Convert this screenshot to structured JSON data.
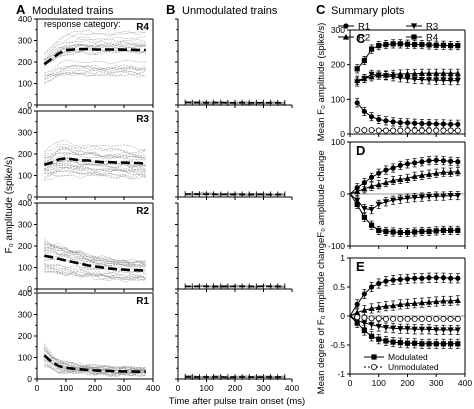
{
  "panels": {
    "A": {
      "letter": "A",
      "title": "Modulated trains"
    },
    "B": {
      "letter": "B",
      "title": "Unmodulated trains"
    },
    "C": {
      "letter": "C",
      "title": "Summary plots"
    },
    "D": {
      "letter": "D"
    },
    "E": {
      "letter": "E"
    }
  },
  "response_category_label": "response category:",
  "y_left_label": "F₀ amplitude (spike/s)",
  "x_label": "Time after pulse train onset (ms)",
  "chart_data": [
    {
      "id": "A_R4",
      "type": "line",
      "category_label": "R4",
      "xlim": [
        0,
        400
      ],
      "ylim": [
        0,
        400
      ],
      "x_ticks": [],
      "y_ticks": [
        0,
        100,
        200,
        300,
        400
      ],
      "series": [
        {
          "name": "mean",
          "x": [
            25,
            50,
            75,
            100,
            125,
            150,
            175,
            200,
            225,
            250,
            275,
            300,
            325,
            350,
            375
          ],
          "values": [
            190,
            215,
            240,
            255,
            258,
            260,
            260,
            258,
            258,
            258,
            258,
            257,
            257,
            256,
            256
          ]
        }
      ]
    },
    {
      "id": "A_R3",
      "type": "line",
      "category_label": "R3",
      "xlim": [
        0,
        400
      ],
      "ylim": [
        0,
        400
      ],
      "x_ticks": [],
      "y_ticks": [
        0,
        100,
        200,
        300,
        400
      ],
      "series": [
        {
          "name": "mean",
          "x": [
            25,
            50,
            75,
            100,
            125,
            150,
            175,
            200,
            225,
            250,
            275,
            300,
            325,
            350,
            375
          ],
          "values": [
            150,
            160,
            175,
            180,
            175,
            170,
            170,
            165,
            162,
            162,
            160,
            160,
            158,
            158,
            155
          ]
        }
      ]
    },
    {
      "id": "A_R2",
      "type": "line",
      "category_label": "R2",
      "xlim": [
        0,
        400
      ],
      "ylim": [
        0,
        400
      ],
      "x_ticks": [],
      "y_ticks": [
        0,
        100,
        200,
        300,
        400
      ],
      "series": [
        {
          "name": "mean",
          "x": [
            25,
            50,
            75,
            100,
            125,
            150,
            175,
            200,
            225,
            250,
            275,
            300,
            325,
            350,
            375
          ],
          "values": [
            155,
            148,
            140,
            132,
            125,
            118,
            110,
            105,
            100,
            95,
            92,
            90,
            88,
            87,
            86
          ]
        }
      ]
    },
    {
      "id": "A_R1",
      "type": "line",
      "category_label": "R1",
      "xlim": [
        0,
        400
      ],
      "ylim": [
        0,
        400
      ],
      "x_ticks": [
        0,
        100,
        200,
        300,
        400
      ],
      "y_ticks": [
        0,
        100,
        200,
        300,
        400
      ],
      "series": [
        {
          "name": "mean",
          "x": [
            25,
            50,
            75,
            100,
            125,
            150,
            175,
            200,
            225,
            250,
            275,
            300,
            325,
            350,
            375
          ],
          "values": [
            110,
            80,
            60,
            52,
            48,
            45,
            42,
            40,
            38,
            37,
            36,
            35,
            35,
            34,
            34
          ]
        }
      ]
    },
    {
      "id": "B_R4",
      "type": "line",
      "xlim": [
        0,
        400
      ],
      "ylim": [
        0,
        400
      ],
      "x_ticks": [],
      "y_ticks": [
        0,
        100,
        200,
        300,
        400
      ],
      "series": [
        {
          "name": "mean",
          "x": [
            25,
            50,
            75,
            100,
            125,
            150,
            175,
            200,
            225,
            250,
            275,
            300,
            325,
            350,
            375
          ],
          "values": [
            12,
            11,
            11,
            10,
            11,
            11,
            10,
            10,
            11,
            10,
            10,
            11,
            10,
            10,
            10
          ]
        }
      ]
    },
    {
      "id": "B_R3",
      "type": "line",
      "xlim": [
        0,
        400
      ],
      "ylim": [
        0,
        400
      ],
      "x_ticks": [],
      "y_ticks": [
        0,
        100,
        200,
        300,
        400
      ],
      "series": [
        {
          "name": "mean",
          "x": [
            25,
            50,
            75,
            100,
            125,
            150,
            175,
            200,
            225,
            250,
            275,
            300,
            325,
            350,
            375
          ],
          "values": [
            14,
            14,
            13,
            13,
            13,
            12,
            12,
            12,
            12,
            12,
            12,
            12,
            12,
            12,
            12
          ]
        }
      ]
    },
    {
      "id": "B_R2",
      "type": "line",
      "xlim": [
        0,
        400
      ],
      "ylim": [
        0,
        400
      ],
      "x_ticks": [],
      "y_ticks": [
        0,
        100,
        200,
        300,
        400
      ],
      "series": [
        {
          "name": "mean",
          "x": [
            25,
            50,
            75,
            100,
            125,
            150,
            175,
            200,
            225,
            250,
            275,
            300,
            325,
            350,
            375
          ],
          "values": [
            12,
            12,
            12,
            12,
            12,
            12,
            12,
            12,
            12,
            12,
            12,
            12,
            12,
            12,
            12
          ]
        }
      ]
    },
    {
      "id": "B_R1",
      "type": "line",
      "xlim": [
        0,
        400
      ],
      "ylim": [
        0,
        400
      ],
      "x_ticks": [
        0,
        100,
        200,
        300,
        400
      ],
      "y_ticks": [
        0,
        100,
        200,
        300,
        400
      ],
      "series": [
        {
          "name": "mean",
          "x": [
            25,
            50,
            75,
            100,
            125,
            150,
            175,
            200,
            225,
            250,
            275,
            300,
            325,
            350,
            375
          ],
          "values": [
            10,
            10,
            9,
            9,
            9,
            9,
            9,
            9,
            9,
            9,
            9,
            9,
            9,
            9,
            9
          ]
        }
      ]
    },
    {
      "id": "C",
      "type": "line",
      "ylabel": "Mean F₀ amplitude (spike/s)",
      "xlim": [
        0,
        400
      ],
      "ylim": [
        0,
        300
      ],
      "x_ticks": [],
      "y_ticks": [
        0,
        100,
        200,
        300
      ],
      "legend": [
        "R1",
        "R3",
        "R2",
        "R4"
      ],
      "series": [
        {
          "name": "R1",
          "marker": "circle",
          "x": [
            25,
            50,
            75,
            100,
            125,
            150,
            175,
            200,
            225,
            250,
            275,
            300,
            325,
            350,
            375
          ],
          "values": [
            90,
            65,
            50,
            42,
            38,
            35,
            33,
            32,
            31,
            30,
            30,
            29,
            29,
            28,
            28
          ]
        },
        {
          "name": "R2",
          "marker": "triangle",
          "x": [
            25,
            50,
            75,
            100,
            125,
            150,
            175,
            200,
            225,
            250,
            275,
            300,
            325,
            350,
            375
          ],
          "values": [
            155,
            160,
            165,
            170,
            170,
            172,
            173,
            174,
            174,
            175,
            175,
            175,
            175,
            175,
            175
          ]
        },
        {
          "name": "R3",
          "marker": "triangle-down",
          "x": [
            25,
            50,
            75,
            100,
            125,
            150,
            175,
            200,
            225,
            250,
            275,
            300,
            325,
            350,
            375
          ],
          "values": [
            150,
            160,
            172,
            170,
            168,
            165,
            162,
            160,
            158,
            157,
            156,
            155,
            155,
            154,
            154
          ]
        },
        {
          "name": "R4",
          "marker": "square",
          "x": [
            25,
            50,
            75,
            100,
            125,
            150,
            175,
            200,
            225,
            250,
            275,
            300,
            325,
            350,
            375
          ],
          "values": [
            188,
            212,
            245,
            255,
            258,
            260,
            260,
            259,
            258,
            258,
            257,
            256,
            256,
            255,
            255
          ]
        },
        {
          "name": "unmod",
          "marker": "open-circle",
          "x": [
            25,
            50,
            75,
            100,
            125,
            150,
            175,
            200,
            225,
            250,
            275,
            300,
            325,
            350,
            375
          ],
          "values": [
            12,
            11,
            11,
            10,
            10,
            10,
            10,
            10,
            10,
            10,
            10,
            10,
            10,
            10,
            10
          ]
        }
      ]
    },
    {
      "id": "D",
      "type": "line",
      "ylabel": "F₀ amplitude change",
      "xlim": [
        0,
        400
      ],
      "ylim": [
        -100,
        100
      ],
      "x_ticks": [],
      "y_ticks": [
        -100,
        0,
        100
      ],
      "series": [
        {
          "name": "R1",
          "marker": "circle",
          "x": [
            0,
            25,
            50,
            75,
            100,
            125,
            150,
            175,
            200,
            225,
            250,
            275,
            300,
            325,
            350,
            375
          ],
          "values": [
            0,
            12,
            22,
            32,
            40,
            46,
            50,
            55,
            58,
            60,
            62,
            64,
            65,
            64,
            63,
            62
          ]
        },
        {
          "name": "R2",
          "marker": "triangle",
          "x": [
            0,
            25,
            50,
            75,
            100,
            125,
            150,
            175,
            200,
            225,
            250,
            275,
            300,
            325,
            350,
            375
          ],
          "values": [
            0,
            5,
            10,
            15,
            18,
            22,
            26,
            28,
            30,
            34,
            36,
            38,
            40,
            42,
            42,
            43
          ]
        },
        {
          "name": "R3",
          "marker": "triangle-down",
          "x": [
            0,
            25,
            50,
            75,
            100,
            125,
            150,
            175,
            200,
            225,
            250,
            275,
            300,
            325,
            350,
            375
          ],
          "values": [
            0,
            -12,
            -28,
            -30,
            -20,
            -15,
            -12,
            -10,
            -8,
            -7,
            -6,
            -5,
            -4,
            -4,
            -3,
            -3
          ]
        },
        {
          "name": "R4",
          "marker": "square",
          "x": [
            0,
            25,
            50,
            75,
            100,
            125,
            150,
            175,
            200,
            225,
            250,
            275,
            300,
            325,
            350,
            375
          ],
          "values": [
            0,
            -20,
            -45,
            -60,
            -70,
            -72,
            -73,
            -74,
            -74,
            -73,
            -72,
            -72,
            -71,
            -70,
            -70,
            -70
          ]
        }
      ]
    },
    {
      "id": "E",
      "type": "line",
      "ylabel": "Mean degree of F₀ amplitude change",
      "xlim": [
        0,
        400
      ],
      "ylim": [
        -1,
        1
      ],
      "x_ticks": [
        0,
        100,
        200,
        300,
        400
      ],
      "y_ticks": [
        -1,
        -0.5,
        0,
        0.5,
        1
      ],
      "legend": [
        "Modulated",
        "Unmodulated"
      ],
      "series": [
        {
          "name": "R1",
          "marker": "circle",
          "x": [
            0,
            25,
            50,
            75,
            100,
            125,
            150,
            175,
            200,
            225,
            250,
            275,
            300,
            325,
            350,
            375
          ],
          "values": [
            0,
            0.2,
            0.38,
            0.5,
            0.56,
            0.6,
            0.62,
            0.63,
            0.64,
            0.65,
            0.65,
            0.66,
            0.66,
            0.66,
            0.65,
            0.65
          ]
        },
        {
          "name": "R2",
          "marker": "triangle",
          "x": [
            0,
            25,
            50,
            75,
            100,
            125,
            150,
            175,
            200,
            225,
            250,
            275,
            300,
            325,
            350,
            375
          ],
          "values": [
            0,
            0.06,
            0.1,
            0.13,
            0.15,
            0.17,
            0.18,
            0.2,
            0.21,
            0.22,
            0.23,
            0.24,
            0.25,
            0.26,
            0.26,
            0.27
          ]
        },
        {
          "name": "R3",
          "marker": "triangle-down",
          "x": [
            0,
            25,
            50,
            75,
            100,
            125,
            150,
            175,
            200,
            225,
            250,
            275,
            300,
            325,
            350,
            375
          ],
          "values": [
            0,
            -0.08,
            -0.12,
            -0.15,
            -0.18,
            -0.2,
            -0.21,
            -0.22,
            -0.22,
            -0.23,
            -0.23,
            -0.23,
            -0.24,
            -0.24,
            -0.24,
            -0.24
          ]
        },
        {
          "name": "R4",
          "marker": "square",
          "x": [
            0,
            25,
            50,
            75,
            100,
            125,
            150,
            175,
            200,
            225,
            250,
            275,
            300,
            325,
            350,
            375
          ],
          "values": [
            0,
            -0.12,
            -0.25,
            -0.35,
            -0.4,
            -0.43,
            -0.45,
            -0.46,
            -0.47,
            -0.47,
            -0.48,
            -0.48,
            -0.48,
            -0.48,
            -0.48,
            -0.48
          ]
        },
        {
          "name": "unmod",
          "marker": "open-circle",
          "x": [
            0,
            25,
            50,
            75,
            100,
            125,
            150,
            175,
            200,
            225,
            250,
            275,
            300,
            325,
            350,
            375
          ],
          "values": [
            0,
            -0.02,
            -0.03,
            -0.04,
            -0.04,
            -0.05,
            -0.05,
            -0.05,
            -0.05,
            -0.05,
            -0.05,
            -0.05,
            -0.05,
            -0.05,
            -0.05,
            -0.05
          ]
        }
      ]
    }
  ]
}
